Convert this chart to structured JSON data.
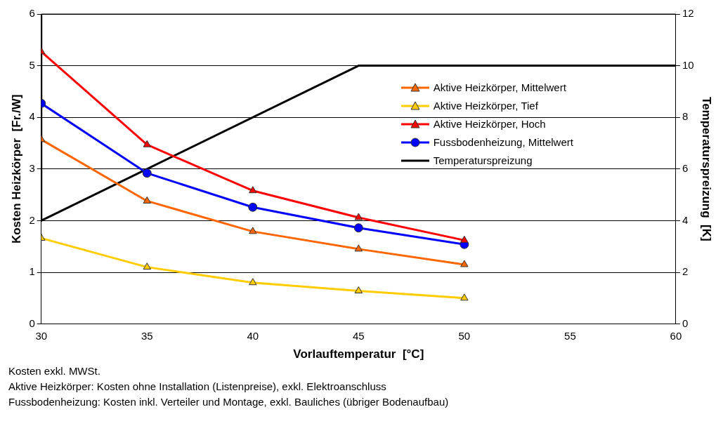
{
  "chart_data": {
    "type": "line",
    "xlabel": "Vorlauftemperatur  [°C]",
    "ylabel": "Kosten Heizkörper  [Fr./W]",
    "y2label": "Temperaturspreizung  [K]",
    "xlim": [
      30,
      60
    ],
    "xticks": [
      30,
      35,
      40,
      45,
      50,
      55,
      60
    ],
    "ylim": [
      0,
      6
    ],
    "yticks": [
      0,
      1,
      2,
      3,
      4,
      5,
      6
    ],
    "y2lim": [
      0,
      12
    ],
    "y2ticks": [
      0,
      2,
      4,
      6,
      8,
      10,
      12
    ],
    "grid": "y",
    "legend": "right",
    "series": [
      {
        "name": "Aktive Heizkörper, Mittelwert",
        "color": "#ff6600",
        "marker": "triangle",
        "x": [
          30,
          35,
          40,
          45,
          50
        ],
        "values": [
          3.57,
          2.38,
          1.79,
          1.45,
          1.15
        ]
      },
      {
        "name": "Aktive Heizkörper, Tief",
        "color": "#ffcc00",
        "marker": "triangle",
        "x": [
          30,
          35,
          40,
          45,
          50
        ],
        "values": [
          1.66,
          1.1,
          0.8,
          0.64,
          0.5
        ]
      },
      {
        "name": "Aktive Heizkörper, Hoch",
        "color": "#ff0000",
        "marker": "triangle",
        "x": [
          30,
          35,
          40,
          45,
          50
        ],
        "values": [
          5.27,
          3.47,
          2.58,
          2.06,
          1.62
        ]
      },
      {
        "name": "Fussbodenheizung, Mittelwert",
        "color": "#0000ff",
        "marker": "circle",
        "x": [
          30,
          35,
          40,
          45,
          50
        ],
        "values": [
          4.27,
          2.92,
          2.26,
          1.86,
          1.54
        ]
      },
      {
        "name": "Temperaturspreizung",
        "color": "#000000",
        "marker": "none",
        "axis": "y2",
        "x": [
          30,
          30,
          45,
          60
        ],
        "values": [
          12,
          4,
          10,
          10
        ]
      }
    ],
    "annotations": [
      "Kosten exkl. MWSt.",
      "Aktive Heizkörper: Kosten ohne Installation (Listenpreise), exkl. Elektroanschluss",
      "Fussbodenheizung:  Kosten inkl. Verteiler und Montage, exkl. Bauliches (übriger Bodenaufbau)"
    ]
  }
}
